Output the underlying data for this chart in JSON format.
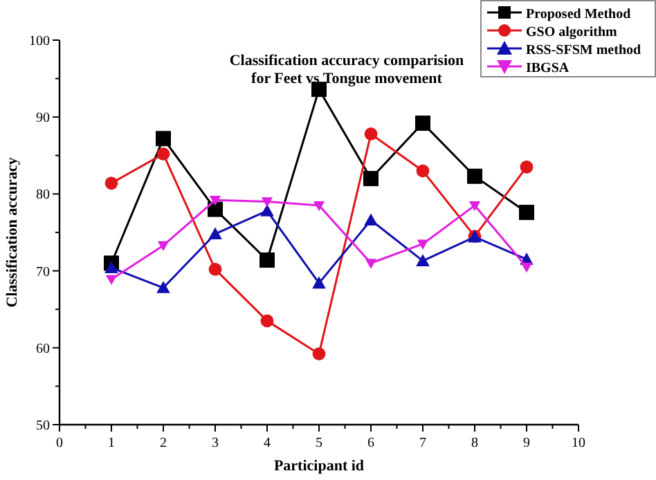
{
  "chart_data": {
    "type": "line",
    "title": "Classification accuracy comparision\nfor Feet vs Tongue movement",
    "xlabel": "Participant id",
    "ylabel": "Classification accuracy",
    "x": [
      1,
      2,
      3,
      4,
      5,
      6,
      7,
      8,
      9
    ],
    "xlim": [
      0,
      10
    ],
    "xticks": [
      0,
      1,
      2,
      3,
      4,
      5,
      6,
      7,
      8,
      9,
      10
    ],
    "ylim": [
      50,
      100
    ],
    "yticks": [
      50,
      60,
      70,
      80,
      90,
      100
    ],
    "grid": false,
    "legend": "top right",
    "series": [
      {
        "name": "Proposed Method",
        "color": "#000000",
        "marker": "square",
        "values": [
          71,
          87.2,
          78,
          71.4,
          93.6,
          82,
          89.2,
          82.3,
          77.6
        ]
      },
      {
        "name": "GSO algorithm",
        "color": "#e0161b",
        "marker": "circle",
        "values": [
          81.4,
          85.2,
          70.2,
          63.5,
          59.2,
          87.8,
          83,
          74.5,
          83.5
        ]
      },
      {
        "name": "RSS-SFSM method",
        "color": "#1010b0",
        "marker": "triangle",
        "values": [
          70.4,
          67.8,
          74.8,
          77.8,
          68.4,
          76.6,
          71.3,
          74.4,
          71.5
        ]
      },
      {
        "name": "IBGSA",
        "color": "#e020e0",
        "marker": "triangle-down",
        "values": [
          68.9,
          73.3,
          79.2,
          79,
          78.5,
          71,
          73.5,
          78.5,
          70.5
        ]
      }
    ]
  }
}
